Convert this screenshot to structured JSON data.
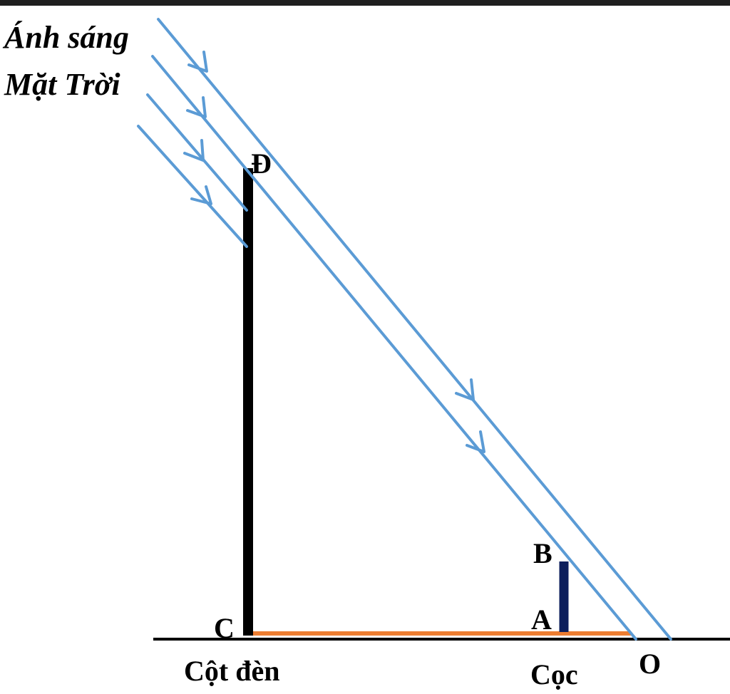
{
  "title_lines": [
    "Ánh sáng",
    "Mặt Trời"
  ],
  "points": {
    "D": "Đ",
    "C": "C",
    "B": "B",
    "A": "A",
    "O": "O"
  },
  "captions": {
    "pole": "Cột đèn",
    "stake": "Cọc"
  },
  "colors": {
    "sun_ray": "#5b9bd5",
    "pole": "#000000",
    "stake": "#0d1f5c",
    "shadow": "#ed7d31",
    "ground": "#000000",
    "top_strip": "#1f1f1f"
  }
}
